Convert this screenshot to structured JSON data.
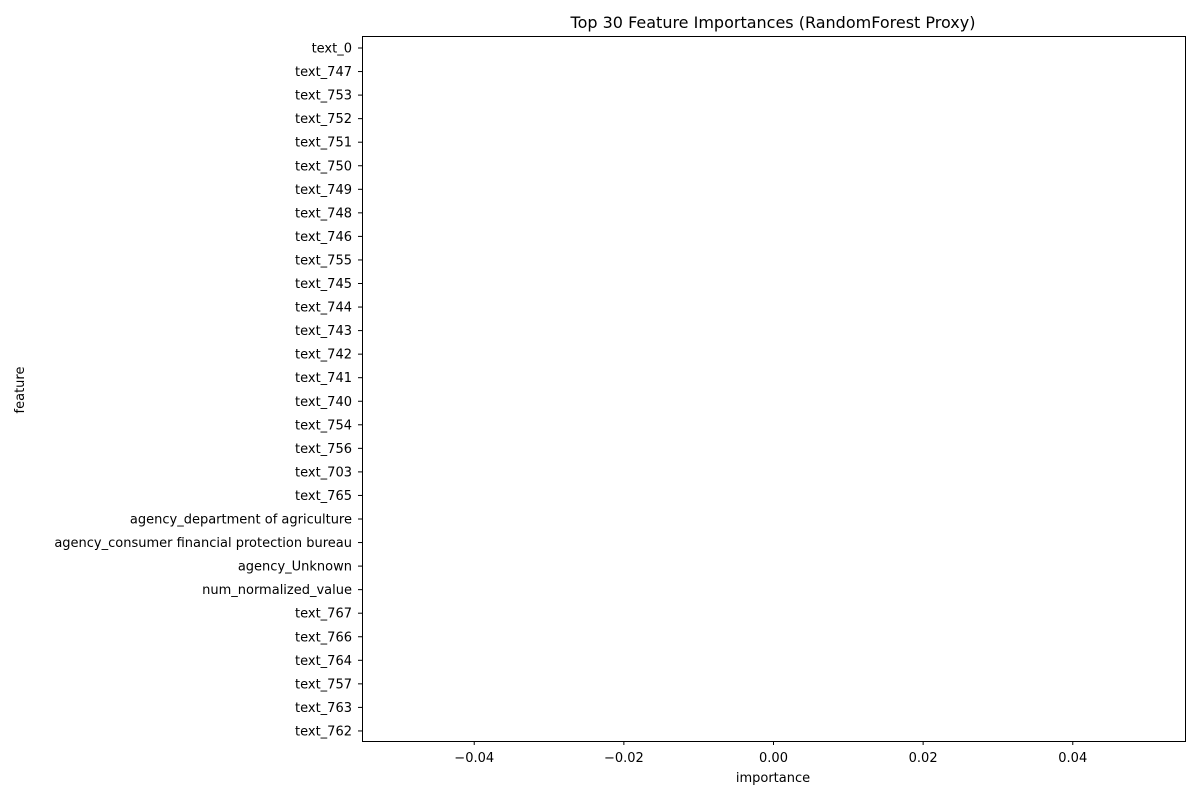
{
  "chart_data": {
    "type": "bar",
    "orientation": "horizontal",
    "title": "Top 30 Feature Importances (RandomForest Proxy)",
    "xlabel": "importance",
    "ylabel": "feature",
    "xlim": [
      -0.055,
      0.055
    ],
    "xticks": [
      -0.04,
      -0.02,
      0.0,
      0.02,
      0.04
    ],
    "xtick_labels": [
      "−0.04",
      "−0.02",
      "0.00",
      "0.02",
      "0.04"
    ],
    "grid": false,
    "categories": [
      "text_0",
      "text_747",
      "text_753",
      "text_752",
      "text_751",
      "text_750",
      "text_749",
      "text_748",
      "text_746",
      "text_755",
      "text_745",
      "text_744",
      "text_743",
      "text_742",
      "text_741",
      "text_740",
      "text_754",
      "text_756",
      "text_703",
      "text_765",
      "agency_department of agriculture",
      "agency_consumer financial protection bureau",
      "agency_Unknown",
      "num_normalized_value",
      "text_767",
      "text_766",
      "text_764",
      "text_757",
      "text_763",
      "text_762"
    ],
    "values": [
      0,
      0,
      0,
      0,
      0,
      0,
      0,
      0,
      0,
      0,
      0,
      0,
      0,
      0,
      0,
      0,
      0,
      0,
      0,
      0,
      0,
      0,
      0,
      0,
      0,
      0,
      0,
      0,
      0,
      0
    ],
    "bar_color": "#1f77b4"
  }
}
